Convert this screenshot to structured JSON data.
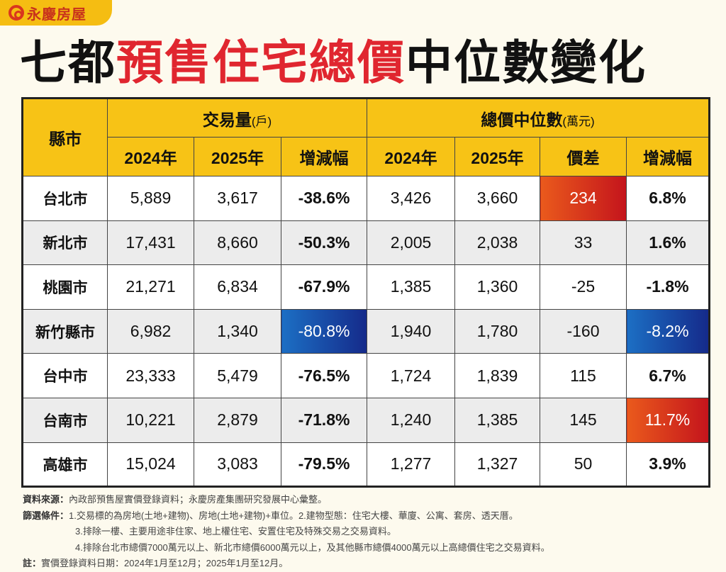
{
  "logo": {
    "text": "永慶房屋"
  },
  "title": {
    "part1": "七都",
    "part2": "預售住宅總價",
    "part3": "中位數變化"
  },
  "colors": {
    "header": "#f7c316",
    "title_red": "#e0262f",
    "highlight_red": "#d8321c",
    "highlight_blue": "#1a4fa8"
  },
  "table": {
    "county_header": "縣市",
    "group1": {
      "label": "交易量",
      "unit": "(戶)"
    },
    "group2": {
      "label": "總價中位數",
      "unit": "(萬元)"
    },
    "sub_headers": [
      "2024年",
      "2025年",
      "增減幅",
      "2024年",
      "2025年",
      "價差",
      "增減幅"
    ],
    "rows": [
      {
        "county": "台北市",
        "v2024": "5,889",
        "v2025": "3,617",
        "vchg": "-38.6%",
        "p2024": "3,426",
        "p2025": "3,660",
        "diff": "234",
        "pchg": "6.8%"
      },
      {
        "county": "新北市",
        "v2024": "17,431",
        "v2025": "8,660",
        "vchg": "-50.3%",
        "p2024": "2,005",
        "p2025": "2,038",
        "diff": "33",
        "pchg": "1.6%"
      },
      {
        "county": "桃園市",
        "v2024": "21,271",
        "v2025": "6,834",
        "vchg": "-67.9%",
        "p2024": "1,385",
        "p2025": "1,360",
        "diff": "-25",
        "pchg": "-1.8%"
      },
      {
        "county": "新竹縣市",
        "v2024": "6,982",
        "v2025": "1,340",
        "vchg": "-80.8%",
        "p2024": "1,940",
        "p2025": "1,780",
        "diff": "-160",
        "pchg": "-8.2%"
      },
      {
        "county": "台中市",
        "v2024": "23,333",
        "v2025": "5,479",
        "vchg": "-76.5%",
        "p2024": "1,724",
        "p2025": "1,839",
        "diff": "115",
        "pchg": "6.7%"
      },
      {
        "county": "台南市",
        "v2024": "10,221",
        "v2025": "2,879",
        "vchg": "-71.8%",
        "p2024": "1,240",
        "p2025": "1,385",
        "diff": "145",
        "pchg": "11.7%"
      },
      {
        "county": "高雄市",
        "v2024": "15,024",
        "v2025": "3,083",
        "vchg": "-79.5%",
        "p2024": "1,277",
        "p2025": "1,327",
        "diff": "50",
        "pchg": "3.9%"
      }
    ]
  },
  "notes": {
    "source_label": "資料來源：",
    "source": "內政部預售屋實價登錄資料；永慶房產集團研究發展中心彙整。",
    "filter_label": "篩選條件：",
    "filters": [
      "1.交易標的為房地(土地+建物)、房地(土地+建物)+車位。2.建物型態：住宅大樓、華廈、公寓、套房、透天厝。",
      "3.排除一樓、主要用途非住家、地上權住宅、安置住宅及特殊交易之交易資料。",
      "4.排除台北市總價7000萬元以上、新北市總價6000萬元以上，及其他縣市總價4000萬元以上高總價住宅之交易資料。"
    ],
    "note_label": "註：",
    "note": "實價登錄資料日期：2024年1月至12月；2025年1月至12月。"
  }
}
